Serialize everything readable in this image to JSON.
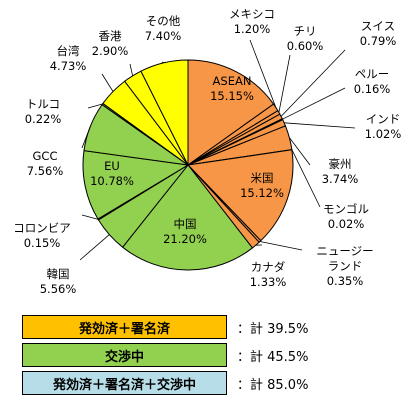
{
  "chart_data": {
    "type": "pie",
    "slices": [
      {
        "name": "ASEAN",
        "value": 15.15,
        "display": "15.15%",
        "group": "effective"
      },
      {
        "name": "メキシコ",
        "value": 1.2,
        "display": "1.20%",
        "group": "effective"
      },
      {
        "name": "チリ",
        "value": 0.6,
        "display": "0.60%",
        "group": "effective"
      },
      {
        "name": "スイス",
        "value": 0.79,
        "display": "0.79%",
        "group": "effective"
      },
      {
        "name": "ペルー",
        "value": 0.16,
        "display": "0.16%",
        "group": "effective"
      },
      {
        "name": "インド",
        "value": 1.02,
        "display": "1.02%",
        "group": "effective"
      },
      {
        "name": "豪州",
        "value": 3.74,
        "display": "3.74%",
        "group": "effective"
      },
      {
        "name": "モンゴル",
        "value": 0.02,
        "display": "0.02%",
        "group": "effective"
      },
      {
        "name": "米国",
        "value": 15.12,
        "display": "15.12%",
        "group": "effective"
      },
      {
        "name": "ニュージーランド",
        "value": 0.35,
        "display": "0.35%",
        "group": "effective"
      },
      {
        "name": "カナダ",
        "value": 1.33,
        "display": "1.33%",
        "group": "effective"
      },
      {
        "name": "中国",
        "value": 21.2,
        "display": "21.20%",
        "group": "negotiating"
      },
      {
        "name": "韓国",
        "value": 5.56,
        "display": "5.56%",
        "group": "negotiating"
      },
      {
        "name": "コロンビア",
        "value": 0.15,
        "display": "0.15%",
        "group": "negotiating"
      },
      {
        "name": "EU",
        "value": 10.78,
        "display": "10.78%",
        "group": "negotiating"
      },
      {
        "name": "GCC",
        "value": 7.56,
        "display": "7.56%",
        "group": "negotiating"
      },
      {
        "name": "トルコ",
        "value": 0.22,
        "display": "0.22%",
        "group": "negotiating"
      },
      {
        "name": "台湾",
        "value": 4.73,
        "display": "4.73%",
        "group": "other"
      },
      {
        "name": "香港",
        "value": 2.9,
        "display": "2.90%",
        "group": "other"
      },
      {
        "name": "その他",
        "value": 7.4,
        "display": "7.40%",
        "group": "other"
      }
    ],
    "colors": {
      "effective": "#f79646",
      "negotiating": "#92d050",
      "other": "#ffff00",
      "border": "#000000"
    },
    "legend": [
      {
        "label": "発効済＋署名済",
        "total": "：計 39.5%",
        "color": "#ffc000"
      },
      {
        "label": "交渉中",
        "total": "：計 45.5%",
        "color": "#92d050"
      },
      {
        "label": "発効済＋署名済＋交渉中",
        "total": "：計 85.0%",
        "color": "#b7dee8"
      }
    ]
  }
}
